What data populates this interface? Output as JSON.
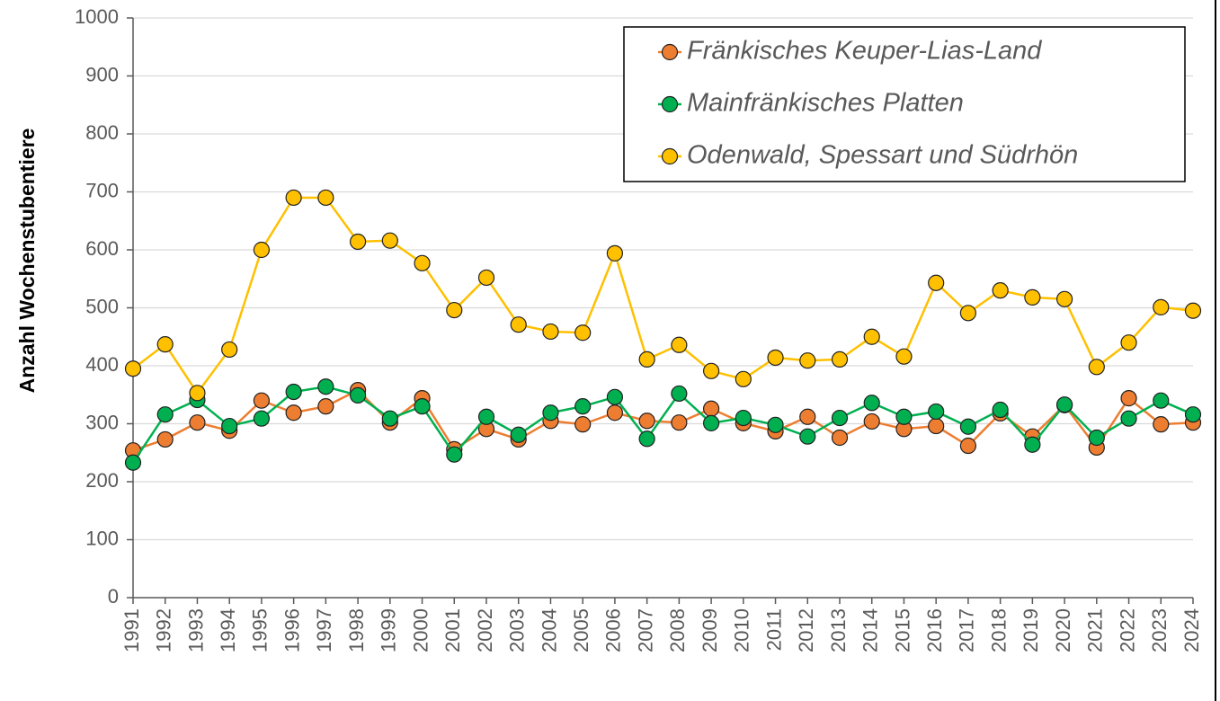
{
  "chart_data": {
    "type": "line",
    "y_label": "Anzahl Wochenstubentiere",
    "categories": [
      "1991",
      "1992",
      "1993",
      "1994",
      "1995",
      "1996",
      "1997",
      "1998",
      "1999",
      "2000",
      "2001",
      "2002",
      "2003",
      "2004",
      "2005",
      "2006",
      "2007",
      "2008",
      "2009",
      "2010",
      "2011",
      "2012",
      "2013",
      "2014",
      "2015",
      "2016",
      "2017",
      "2018",
      "2019",
      "2020",
      "2021",
      "2022",
      "2023",
      "2024"
    ],
    "series": [
      {
        "name": "Fränkisches Keuper-Lias-Land",
        "color": "#ED7D31",
        "values": [
          254,
          273,
          302,
          288,
          340,
          319,
          330,
          358,
          302,
          344,
          256,
          291,
          273,
          305,
          299,
          319,
          305,
          302,
          326,
          301,
          287,
          312,
          276,
          304,
          291,
          296,
          262,
          318,
          278,
          332,
          259,
          344,
          299,
          302
        ]
      },
      {
        "name": "Mainfränkisches Platten",
        "color": "#00B050",
        "values": [
          233,
          316,
          341,
          296,
          309,
          355,
          364,
          349,
          309,
          330,
          247,
          312,
          281,
          319,
          330,
          346,
          274,
          352,
          301,
          310,
          298,
          278,
          310,
          336,
          312,
          321,
          295,
          324,
          264,
          333,
          276,
          309,
          340,
          316
        ]
      },
      {
        "name": "Odenwald, Spessart und Südrhön",
        "color": "#FFC000",
        "values": [
          395,
          437,
          353,
          428,
          600,
          690,
          690,
          614,
          616,
          577,
          496,
          552,
          471,
          459,
          457,
          594,
          411,
          436,
          391,
          377,
          414,
          409,
          411,
          450,
          416,
          543,
          491,
          530,
          518,
          515,
          398,
          440,
          501,
          495
        ]
      }
    ],
    "ylim": [
      0,
      1000
    ],
    "yticks": [
      0,
      100,
      200,
      300,
      400,
      500,
      600,
      700,
      800,
      900,
      1000
    ],
    "grid": true,
    "legend": "top-right"
  }
}
